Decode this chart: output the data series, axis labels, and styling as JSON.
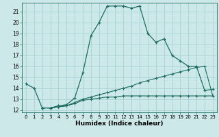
{
  "xlabel": "Humidex (Indice chaleur)",
  "bg_color": "#cce8e8",
  "line_color": "#1a6b5e",
  "grid_color": "#9fcece",
  "xlim": [
    -0.5,
    23.5
  ],
  "ylim": [
    11.8,
    21.8
  ],
  "yticks": [
    12,
    13,
    14,
    15,
    16,
    17,
    18,
    19,
    20,
    21
  ],
  "xticks": [
    0,
    1,
    2,
    3,
    4,
    5,
    6,
    7,
    8,
    9,
    10,
    11,
    12,
    13,
    14,
    15,
    16,
    17,
    18,
    19,
    20,
    21,
    22,
    23
  ],
  "curve1_x": [
    0,
    1,
    2,
    3,
    4,
    5,
    6,
    7,
    8,
    9,
    10,
    11,
    12,
    13,
    14,
    15,
    16,
    17,
    18,
    19,
    20,
    21,
    22,
    23
  ],
  "curve1_y": [
    14.4,
    14.0,
    12.2,
    12.2,
    12.4,
    12.5,
    13.1,
    15.4,
    18.8,
    20.0,
    21.5,
    21.5,
    21.5,
    21.3,
    21.5,
    19.0,
    18.2,
    18.5,
    17.0,
    16.5,
    16.0,
    16.0,
    13.8,
    13.9
  ],
  "curve2_x": [
    2,
    3,
    4,
    5,
    6,
    7,
    8,
    9,
    10,
    11,
    12,
    13,
    14,
    15,
    16,
    17,
    18,
    19,
    20,
    21,
    22,
    23
  ],
  "curve2_y": [
    12.2,
    12.2,
    12.3,
    12.4,
    12.7,
    13.0,
    13.2,
    13.4,
    13.6,
    13.8,
    14.0,
    14.2,
    14.5,
    14.7,
    14.9,
    15.1,
    15.3,
    15.5,
    15.7,
    15.9,
    16.0,
    13.3
  ],
  "curve3_x": [
    2,
    3,
    4,
    5,
    6,
    7,
    8,
    9,
    10,
    11,
    12,
    13,
    14,
    15,
    16,
    17,
    18,
    19,
    20,
    21,
    22,
    23
  ],
  "curve3_y": [
    12.2,
    12.2,
    12.3,
    12.4,
    12.6,
    12.9,
    13.0,
    13.1,
    13.2,
    13.2,
    13.3,
    13.3,
    13.3,
    13.3,
    13.3,
    13.3,
    13.3,
    13.3,
    13.3,
    13.3,
    13.3,
    13.3
  ]
}
